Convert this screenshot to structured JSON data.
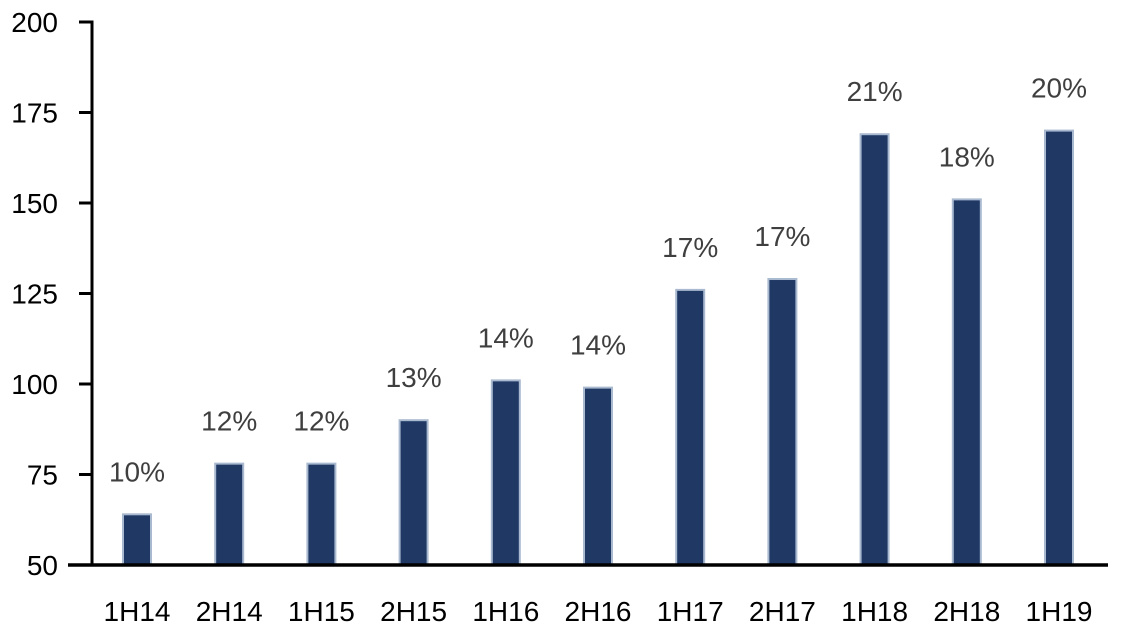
{
  "chart_data": {
    "type": "bar",
    "categories": [
      "1H14",
      "2H14",
      "1H15",
      "2H15",
      "1H16",
      "2H16",
      "1H17",
      "2H17",
      "1H18",
      "2H18",
      "1H19"
    ],
    "values": [
      64,
      78,
      78,
      90,
      101,
      99,
      126,
      129,
      169,
      151,
      170
    ],
    "data_labels": [
      "10%",
      "12%",
      "12%",
      "13%",
      "14%",
      "14%",
      "17%",
      "17%",
      "21%",
      "18%",
      "20%"
    ],
    "ylim": [
      50,
      200
    ],
    "yticks": [
      50,
      75,
      100,
      125,
      150,
      175,
      200
    ],
    "grid": false,
    "legend": false,
    "colors": {
      "bar_fill": "#1F3864",
      "bar_border": "#A9B9CF",
      "data_label": "#3F3F3F",
      "axis_line": "#000000",
      "axis_text": "#000000",
      "background": "#FFFFFF"
    }
  }
}
